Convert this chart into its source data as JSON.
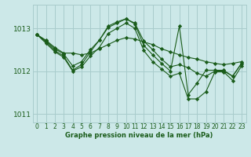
{
  "title": "Graphe pression niveau de la mer (hPa)",
  "background_color": "#cce8e8",
  "grid_color": "#a8cccc",
  "line_color": "#1a5c1a",
  "marker_color": "#1a5c1a",
  "xlim": [
    -0.5,
    23.5
  ],
  "ylim": [
    1010.8,
    1013.55
  ],
  "yticks": [
    1011,
    1012,
    1013
  ],
  "xticks": [
    0,
    1,
    2,
    3,
    4,
    5,
    6,
    7,
    8,
    9,
    10,
    11,
    12,
    13,
    14,
    15,
    16,
    17,
    18,
    19,
    20,
    21,
    22,
    23
  ],
  "series": [
    {
      "x": [
        0,
        1,
        2,
        3,
        4,
        5,
        6,
        7,
        8,
        9,
        10,
        11,
        12,
        13,
        14,
        15,
        16,
        17,
        18,
        19,
        20,
        21,
        22,
        23
      ],
      "y": [
        1012.85,
        1012.72,
        1012.55,
        1012.42,
        1012.42,
        1012.38,
        1012.42,
        1012.52,
        1012.62,
        1012.72,
        1012.78,
        1012.75,
        1012.68,
        1012.62,
        1012.52,
        1012.45,
        1012.38,
        1012.32,
        1012.28,
        1012.22,
        1012.18,
        1012.15,
        1012.18,
        1012.22
      ]
    },
    {
      "x": [
        0,
        1,
        2,
        3,
        4,
        5,
        6,
        7,
        8,
        9,
        10,
        11,
        12,
        13,
        14,
        15,
        16,
        17,
        18,
        19,
        20,
        21,
        22,
        23
      ],
      "y": [
        1012.85,
        1012.7,
        1012.52,
        1012.4,
        1012.12,
        1012.22,
        1012.5,
        1012.72,
        1013.05,
        1013.15,
        1013.22,
        1013.12,
        1012.7,
        1012.5,
        1012.28,
        1012.1,
        1012.15,
        1012.08,
        1011.95,
        1011.88,
        1012.0,
        1012.0,
        1011.88,
        1012.18
      ]
    },
    {
      "x": [
        0,
        1,
        2,
        3,
        4,
        5,
        6,
        7,
        8,
        9,
        10,
        11,
        12,
        13,
        14,
        15,
        16,
        17,
        18,
        19,
        20,
        21,
        22,
        23
      ],
      "y": [
        1012.85,
        1012.68,
        1012.48,
        1012.35,
        1012.02,
        1012.15,
        1012.45,
        1012.72,
        1013.02,
        1013.12,
        1013.22,
        1013.1,
        1012.6,
        1012.38,
        1012.18,
        1012.0,
        1013.05,
        1011.45,
        1011.72,
        1012.02,
        1012.02,
        1012.02,
        1011.88,
        1012.18
      ]
    },
    {
      "x": [
        0,
        1,
        2,
        3,
        4,
        5,
        6,
        7,
        8,
        9,
        10,
        11,
        12,
        13,
        14,
        15,
        16,
        17,
        18,
        19,
        20,
        21,
        22,
        23
      ],
      "y": [
        1012.85,
        1012.65,
        1012.45,
        1012.32,
        1012.0,
        1012.1,
        1012.35,
        1012.55,
        1012.88,
        1013.0,
        1013.12,
        1013.0,
        1012.48,
        1012.22,
        1012.05,
        1011.88,
        1011.95,
        1011.35,
        1011.35,
        1011.52,
        1011.98,
        1011.98,
        1011.78,
        1012.12
      ]
    }
  ]
}
